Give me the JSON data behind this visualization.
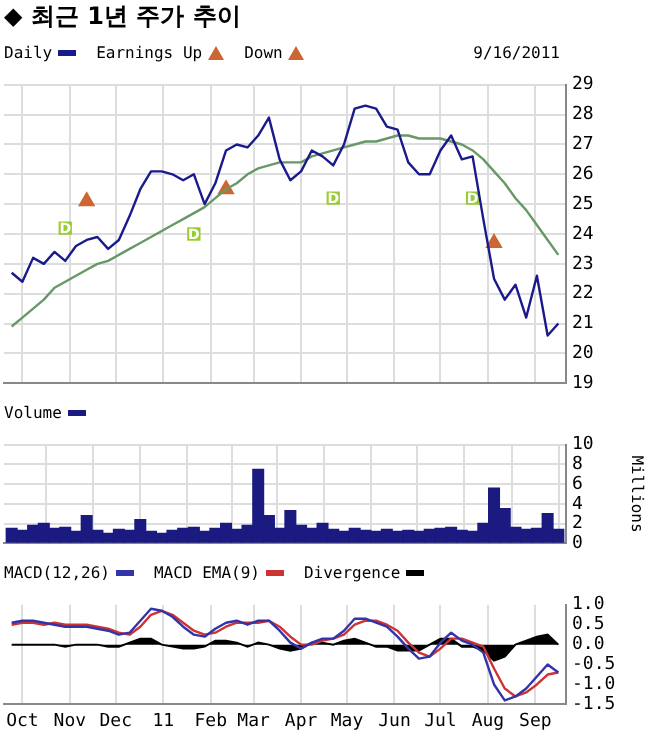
{
  "chart_data": [
    {
      "type": "line",
      "title": "◆ 최근 1년 주가 추이",
      "legend": "top left",
      "grid": true,
      "tick_labels": "y",
      "xticks": [
        {
          "value": "2010-10-01",
          "label": null
        },
        {
          "value": "2010-11-01",
          "label": null
        },
        {
          "value": "2010-12-01",
          "label": null
        },
        {
          "value": "2011-01-01",
          "label": null
        },
        {
          "value": "2011-02-01",
          "label": null
        },
        {
          "value": "2011-03-01",
          "label": null
        },
        {
          "value": "2011-04-01",
          "label": null
        },
        {
          "value": "2011-05-01",
          "label": null
        },
        {
          "value": "2011-06-01",
          "label": null
        },
        {
          "value": "2011-07-01",
          "label": null
        },
        {
          "value": "2011-08-01",
          "label": null
        },
        {
          "value": "2011-09-01",
          "label": null
        }
      ],
      "x": [
        "2010-09-24",
        "2010-10-01",
        "2010-10-08",
        "2010-10-15",
        "2010-10-22",
        "2010-10-29",
        "2010-11-05",
        "2010-11-12",
        "2010-11-19",
        "2010-11-26",
        "2010-12-03",
        "2010-12-10",
        "2010-12-17",
        "2010-12-24",
        "2010-12-31",
        "2011-01-07",
        "2011-01-14",
        "2011-01-21",
        "2011-01-28",
        "2011-02-04",
        "2011-02-11",
        "2011-02-18",
        "2011-02-25",
        "2011-03-04",
        "2011-03-11",
        "2011-03-18",
        "2011-03-25",
        "2011-04-01",
        "2011-04-08",
        "2011-04-15",
        "2011-04-22",
        "2011-04-29",
        "2011-05-06",
        "2011-05-13",
        "2011-05-20",
        "2011-05-27",
        "2011-06-03",
        "2011-06-10",
        "2011-06-17",
        "2011-06-24",
        "2011-07-01",
        "2011-07-08",
        "2011-07-15",
        "2011-07-22",
        "2011-07-29",
        "2011-08-05",
        "2011-08-12",
        "2011-08-19",
        "2011-08-26",
        "2011-09-02",
        "2011-09-09",
        "2011-09-16"
      ],
      "xlim": [
        "2010-09-19",
        "2011-09-21"
      ],
      "ylim": [
        19,
        29
      ],
      "yticks": [
        19,
        20,
        21,
        22,
        23,
        24,
        25,
        26,
        27,
        28,
        29
      ],
      "series": [
        {
          "name": "Daily",
          "color": "#1a1a8c",
          "values": [
            22.7,
            22.4,
            23.2,
            23.0,
            23.4,
            23.1,
            23.6,
            23.8,
            23.9,
            23.5,
            23.8,
            24.6,
            25.5,
            26.1,
            26.1,
            26.0,
            25.8,
            26.0,
            25.0,
            25.7,
            26.8,
            27.0,
            26.9,
            27.3,
            27.9,
            26.5,
            25.8,
            26.1,
            26.8,
            26.6,
            26.3,
            27.0,
            28.2,
            28.3,
            28.2,
            27.6,
            27.5,
            26.4,
            26.0,
            26.0,
            26.8,
            27.3,
            26.5,
            26.6,
            24.5,
            22.5,
            21.8,
            22.3,
            21.2,
            22.6,
            20.6,
            21.0
          ]
        },
        {
          "color": "#669966",
          "values": [
            20.9,
            21.2,
            21.5,
            21.8,
            22.2,
            22.4,
            22.6,
            22.8,
            23.0,
            23.1,
            23.3,
            23.5,
            23.7,
            23.9,
            24.1,
            24.3,
            24.5,
            24.7,
            24.9,
            25.2,
            25.5,
            25.7,
            26.0,
            26.2,
            26.3,
            26.4,
            26.4,
            26.4,
            26.6,
            26.7,
            26.8,
            26.9,
            27.0,
            27.1,
            27.1,
            27.2,
            27.3,
            27.3,
            27.2,
            27.2,
            27.2,
            27.1,
            27.0,
            26.8,
            26.5,
            26.1,
            25.7,
            25.2,
            24.8,
            24.3,
            23.8,
            23.3
          ]
        },
        {
          "name": "Earnings Up",
          "type": "scatter",
          "marker": "triangle",
          "color": "#cc6633",
          "x": [
            "2010-11-12",
            "2011-02-11"
          ],
          "values": [
            25.1,
            25.5
          ]
        },
        {
          "name": "Down",
          "type": "scatter",
          "marker": "triangle",
          "color": "#cc6633",
          "x": [
            "2011-08-05"
          ],
          "values": [
            23.7
          ]
        },
        {
          "type": "scatter",
          "marker": "square",
          "color": "#99cc33",
          "x": [
            "2010-10-29",
            "2011-01-21",
            "2011-04-22",
            "2011-07-22"
          ],
          "values": [
            24.2,
            24.0,
            25.2,
            25.2
          ],
          "value_labels": [
            "D",
            "D",
            "D",
            "D"
          ]
        }
      ],
      "annotations": [
        "9/16/2011"
      ]
    },
    {
      "type": "bar",
      "legend": "top left",
      "grid": true,
      "tick_labels": "y",
      "ylabel": "Millions",
      "xticks": [
        {
          "value": "2010-10-01",
          "label": null
        },
        {
          "value": "2010-11-01",
          "label": null
        },
        {
          "value": "2010-12-01",
          "label": null
        },
        {
          "value": "2011-01-01",
          "label": null
        },
        {
          "value": "2011-02-01",
          "label": null
        },
        {
          "value": "2011-03-01",
          "label": null
        },
        {
          "value": "2011-04-01",
          "label": null
        },
        {
          "value": "2011-05-01",
          "label": null
        },
        {
          "value": "2011-06-01",
          "label": null
        },
        {
          "value": "2011-07-01",
          "label": null
        },
        {
          "value": "2011-08-01",
          "label": null
        },
        {
          "value": "2011-09-01",
          "label": null
        }
      ],
      "x": [
        "2010-09-24",
        "2010-10-01",
        "2010-10-08",
        "2010-10-15",
        "2010-10-22",
        "2010-10-29",
        "2010-11-05",
        "2010-11-12",
        "2010-11-19",
        "2010-11-26",
        "2010-12-03",
        "2010-12-10",
        "2010-12-17",
        "2010-12-24",
        "2010-12-31",
        "2011-01-07",
        "2011-01-14",
        "2011-01-21",
        "2011-01-28",
        "2011-02-04",
        "2011-02-11",
        "2011-02-18",
        "2011-02-25",
        "2011-03-04",
        "2011-03-11",
        "2011-03-18",
        "2011-03-25",
        "2011-04-01",
        "2011-04-08",
        "2011-04-15",
        "2011-04-22",
        "2011-04-29",
        "2011-05-06",
        "2011-05-13",
        "2011-05-20",
        "2011-05-27",
        "2011-06-03",
        "2011-06-10",
        "2011-06-17",
        "2011-06-24",
        "2011-07-01",
        "2011-07-08",
        "2011-07-15",
        "2011-07-22",
        "2011-07-29",
        "2011-08-05",
        "2011-08-12",
        "2011-08-19",
        "2011-08-26",
        "2011-09-02",
        "2011-09-09",
        "2011-09-16"
      ],
      "xlim": [
        "2010-09-19",
        "2011-09-21"
      ],
      "ylim": [
        0,
        10
      ],
      "yticks": [
        0,
        2,
        4,
        6,
        8,
        10
      ],
      "series": [
        {
          "name": "Volume",
          "color": "#1a1a80",
          "values": [
            1.5,
            1.3,
            1.8,
            2.0,
            1.5,
            1.6,
            1.2,
            2.8,
            1.3,
            1.0,
            1.4,
            1.3,
            2.4,
            1.2,
            1.0,
            1.3,
            1.5,
            1.6,
            1.2,
            1.5,
            2.0,
            1.4,
            1.8,
            7.5,
            2.8,
            1.5,
            3.3,
            1.8,
            1.5,
            2.0,
            1.4,
            1.2,
            1.5,
            1.3,
            1.2,
            1.4,
            1.2,
            1.3,
            1.2,
            1.4,
            1.5,
            1.6,
            1.3,
            1.2,
            2.0,
            5.6,
            3.5,
            1.6,
            1.4,
            1.5,
            3.0,
            1.4
          ]
        }
      ]
    },
    {
      "type": "line",
      "legend": "top left",
      "grid": "x",
      "x": [
        "2010-09-24",
        "2010-10-01",
        "2010-10-08",
        "2010-10-15",
        "2010-10-22",
        "2010-10-29",
        "2010-11-05",
        "2010-11-12",
        "2010-11-19",
        "2010-11-26",
        "2010-12-03",
        "2010-12-10",
        "2010-12-17",
        "2010-12-24",
        "2010-12-31",
        "2011-01-07",
        "2011-01-14",
        "2011-01-21",
        "2011-01-28",
        "2011-02-04",
        "2011-02-11",
        "2011-02-18",
        "2011-02-25",
        "2011-03-04",
        "2011-03-11",
        "2011-03-18",
        "2011-03-25",
        "2011-04-01",
        "2011-04-08",
        "2011-04-15",
        "2011-04-22",
        "2011-04-29",
        "2011-05-06",
        "2011-05-13",
        "2011-05-20",
        "2011-05-27",
        "2011-06-03",
        "2011-06-10",
        "2011-06-17",
        "2011-06-24",
        "2011-07-01",
        "2011-07-08",
        "2011-07-15",
        "2011-07-22",
        "2011-07-29",
        "2011-08-05",
        "2011-08-12",
        "2011-08-19",
        "2011-08-26",
        "2011-09-02",
        "2011-09-09",
        "2011-09-16"
      ],
      "xlim": [
        "2010-09-19",
        "2011-09-21"
      ],
      "xticks": [
        {
          "value": "2010-10-01",
          "label": "Oct"
        },
        {
          "value": "2010-11-01",
          "label": "Nov"
        },
        {
          "value": "2010-12-01",
          "label": "Dec"
        },
        {
          "value": "2011-01-01",
          "label": "11"
        },
        {
          "value": "2011-02-01",
          "label": "Feb"
        },
        {
          "value": "2011-03-01",
          "label": "Mar"
        },
        {
          "value": "2011-04-01",
          "label": "Apr"
        },
        {
          "value": "2011-05-01",
          "label": "May"
        },
        {
          "value": "2011-06-01",
          "label": "Jun"
        },
        {
          "value": "2011-07-01",
          "label": "Jul"
        },
        {
          "value": "2011-08-01",
          "label": "Aug"
        },
        {
          "value": "2011-09-01",
          "label": "Sep"
        }
      ],
      "ylim": [
        -1.5,
        1.0
      ],
      "yticks": [
        {
          "value": -1.5,
          "label": "-1.5"
        },
        {
          "value": -1,
          "label": "-1.0"
        },
        {
          "value": -0.5,
          "label": "-0.5"
        },
        {
          "value": 0,
          "label": "0.0"
        },
        {
          "value": 0.5,
          "label": "0.5"
        },
        {
          "value": 1,
          "label": "1.0"
        }
      ],
      "series": [
        {
          "name": "MACD(12,26)",
          "color": "#3333aa",
          "values": [
            0.55,
            0.6,
            0.6,
            0.55,
            0.5,
            0.45,
            0.45,
            0.45,
            0.4,
            0.35,
            0.25,
            0.3,
            0.6,
            0.9,
            0.85,
            0.7,
            0.45,
            0.25,
            0.2,
            0.4,
            0.55,
            0.6,
            0.5,
            0.6,
            0.6,
            0.35,
            0.05,
            -0.1,
            0.05,
            0.15,
            0.15,
            0.35,
            0.65,
            0.65,
            0.55,
            0.45,
            0.2,
            -0.1,
            -0.35,
            -0.3,
            0.05,
            0.3,
            0.1,
            0.0,
            -0.2,
            -1.0,
            -1.4,
            -1.3,
            -1.1,
            -0.8,
            -0.5,
            -0.7
          ]
        },
        {
          "name": "MACD EMA(9)",
          "color": "#cc3333",
          "values": [
            0.5,
            0.55,
            0.55,
            0.5,
            0.55,
            0.5,
            0.5,
            0.5,
            0.45,
            0.4,
            0.3,
            0.25,
            0.45,
            0.75,
            0.85,
            0.75,
            0.55,
            0.35,
            0.25,
            0.3,
            0.45,
            0.55,
            0.55,
            0.55,
            0.6,
            0.45,
            0.2,
            0.0,
            0.0,
            0.1,
            0.15,
            0.25,
            0.5,
            0.6,
            0.6,
            0.5,
            0.35,
            0.05,
            -0.2,
            -0.3,
            -0.1,
            0.15,
            0.15,
            0.05,
            -0.05,
            -0.6,
            -1.1,
            -1.3,
            -1.2,
            -1.0,
            -0.75,
            -0.7
          ]
        },
        {
          "name": "Divergence",
          "type": "area",
          "color": "#000000",
          "values": [
            0,
            0,
            0,
            0,
            0,
            -0.05,
            0,
            0,
            0,
            -0.05,
            -0.05,
            0.05,
            0.15,
            0.15,
            0,
            -0.05,
            -0.1,
            -0.1,
            -0.05,
            0.1,
            0.1,
            0.05,
            -0.05,
            0.05,
            0,
            -0.1,
            -0.15,
            -0.1,
            0.05,
            0.05,
            0,
            0.1,
            0.15,
            0.05,
            -0.05,
            -0.05,
            -0.15,
            -0.15,
            -0.15,
            0,
            0.15,
            0.15,
            -0.05,
            -0.05,
            -0.15,
            -0.4,
            -0.3,
            0,
            0.1,
            0.2,
            0.25,
            0
          ]
        }
      ]
    }
  ]
}
